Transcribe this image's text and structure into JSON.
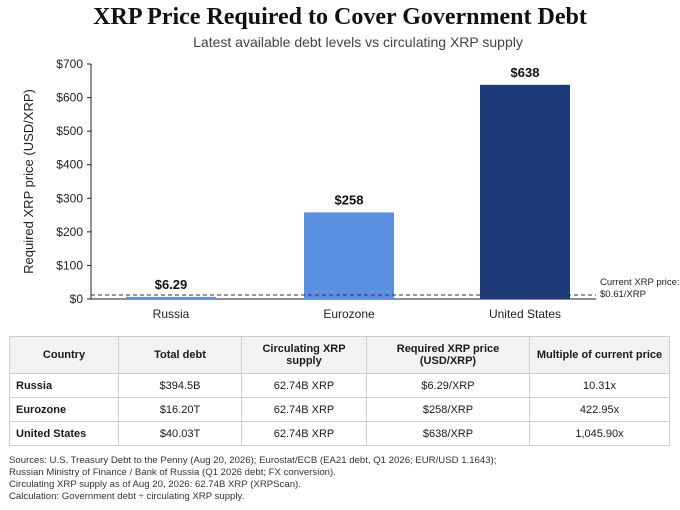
{
  "title": "XRP Price Required to Cover Government Debt",
  "subtitle": "Latest available debt levels vs circulating XRP supply",
  "chart_data": {
    "type": "bar",
    "categories": [
      "Russia",
      "Eurozone",
      "United States"
    ],
    "values": [
      6.29,
      258,
      638
    ],
    "value_labels": [
      "$6.29",
      "$258",
      "$638"
    ],
    "colors": [
      "#5b8fdf",
      "#5b8fdf",
      "#1e3a78"
    ],
    "ylabel": "Required XRP price (USD/XRP)",
    "ylim": [
      0,
      700
    ],
    "yticks": [
      0,
      100,
      200,
      300,
      400,
      500,
      600,
      700
    ],
    "ytick_labels": [
      "$0",
      "$100",
      "$200",
      "$300",
      "$400",
      "$500",
      "$600",
      "$700"
    ],
    "reference_line": {
      "value": 0.61,
      "label_line1": "Current XRP price:",
      "label_line2": "$0.61/XRP",
      "style": "dashed"
    }
  },
  "table": {
    "headers": [
      "Country",
      "Total debt",
      "Circulating XRP supply",
      "Required XRP price (USD/XRP)",
      "Multiple of current price"
    ],
    "rows": [
      [
        "Russia",
        "$394.5B",
        "62.74B XRP",
        "$6.29/XRP",
        "10.31x"
      ],
      [
        "Eurozone",
        "$16.20T",
        "62.74B XRP",
        "$258/XRP",
        "422.95x"
      ],
      [
        "United States",
        "$40.03T",
        "62.74B XRP",
        "$638/XRP",
        "1,045.90x"
      ]
    ]
  },
  "sources": [
    "Sources: U.S. Treasury Debt to the Penny (Aug 20, 2026); Eurostat/ECB (EA21 debt, Q1 2026; EUR/USD 1.1643);",
    "Russian Ministry of Finance / Bank of Russia (Q1 2026 debt; FX conversion).",
    "Circulating XRP supply as of Aug 20, 2026: 62.74B XRP (XRPScan).",
    "Calculation: Government debt ÷ circulating XRP supply."
  ]
}
